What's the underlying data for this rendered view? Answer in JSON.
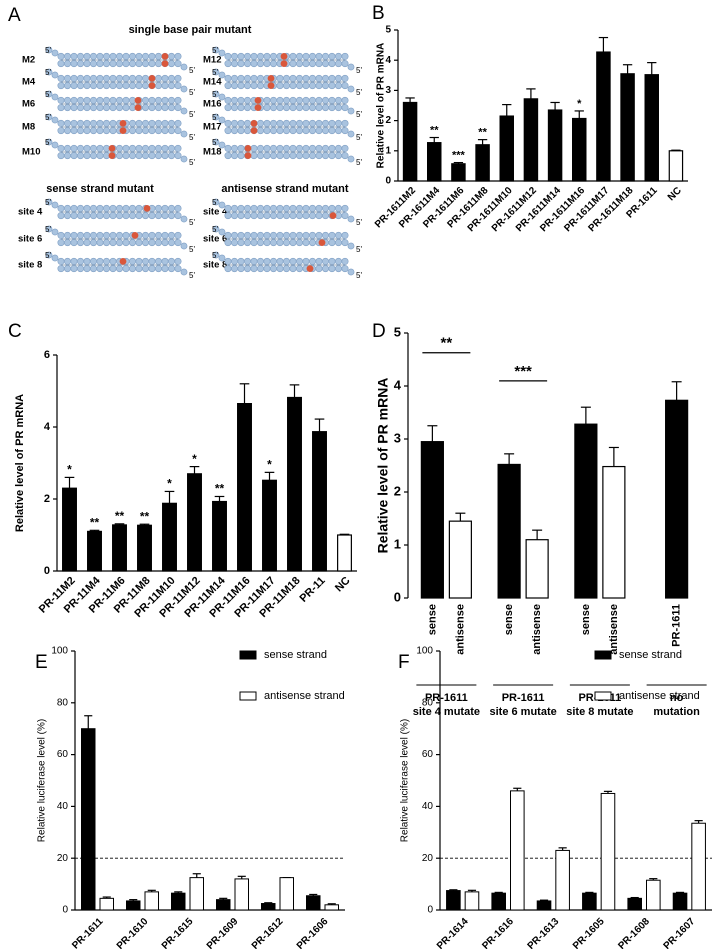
{
  "panel_a": {
    "letter": "A",
    "end_label": "5'",
    "single_title": "single base pair mutant",
    "single_left": [
      "M2",
      "M4",
      "M6",
      "M8",
      "M10"
    ],
    "single_right": [
      "M12",
      "M14",
      "M16",
      "M17",
      "M18"
    ],
    "sense_title": "sense strand mutant",
    "antisense_title": "antisense strand mutant",
    "sense_sites": [
      "site 4",
      "site 6",
      "site 8"
    ],
    "antisense_sites": [
      "site 4",
      "site 6",
      "site 8"
    ]
  },
  "chart_data": [
    {
      "panel": "B",
      "type": "bar",
      "ylabel": "Relative level of PR mRNA",
      "categories": [
        "PR-1611M2",
        "PR-1611M4",
        "PR-1611M6",
        "PR-1611M8",
        "PR-1611M10",
        "PR-1611M12",
        "PR-1611M14",
        "PR-1611M16",
        "PR-1611M17",
        "PR-1611M18",
        "PR-1611",
        "NC"
      ],
      "values": [
        2.6,
        1.27,
        0.57,
        1.2,
        2.15,
        2.72,
        2.35,
        2.07,
        4.27,
        3.55,
        3.52,
        1.0
      ],
      "errors": [
        0.15,
        0.17,
        0.04,
        0.17,
        0.38,
        0.33,
        0.25,
        0.25,
        0.48,
        0.3,
        0.4,
        0.02
      ],
      "significance": [
        null,
        "**",
        "***",
        "**",
        null,
        null,
        null,
        "*",
        null,
        null,
        null,
        null
      ],
      "colors": [
        "#000000",
        "#000000",
        "#000000",
        "#000000",
        "#000000",
        "#000000",
        "#000000",
        "#000000",
        "#000000",
        "#000000",
        "#000000",
        "#ffffff"
      ],
      "ylim": [
        0,
        5
      ],
      "yticks": [
        0,
        1,
        2,
        3,
        4,
        5
      ]
    },
    {
      "panel": "C",
      "type": "bar",
      "ylabel": "Relative level of PR mRNA",
      "categories": [
        "PR-11M2",
        "PR-11M4",
        "PR-11M6",
        "PR-11M8",
        "PR-11M10",
        "PR-11M12",
        "PR-11M14",
        "PR-11M16",
        "PR-11M17",
        "PR-11M18",
        "PR-11",
        "NC"
      ],
      "values": [
        2.3,
        1.1,
        1.28,
        1.27,
        1.88,
        2.7,
        1.93,
        4.65,
        2.52,
        4.82,
        3.87,
        1.0
      ],
      "errors": [
        0.3,
        0.03,
        0.03,
        0.03,
        0.33,
        0.2,
        0.14,
        0.55,
        0.22,
        0.35,
        0.35,
        0.02
      ],
      "significance": [
        "*",
        "**",
        "**",
        "**",
        "*",
        "*",
        "**",
        null,
        "*",
        null,
        null,
        null
      ],
      "colors": [
        "#000000",
        "#000000",
        "#000000",
        "#000000",
        "#000000",
        "#000000",
        "#000000",
        "#000000",
        "#000000",
        "#000000",
        "#000000",
        "#ffffff"
      ],
      "ylim": [
        0,
        6
      ],
      "yticks": [
        0,
        2,
        4,
        6
      ]
    },
    {
      "panel": "D",
      "type": "bar",
      "ylabel": "Relative level of PR mRNA",
      "groups": [
        {
          "label": [
            "PR-1611",
            "site 4 mutate"
          ],
          "categories": [
            "sense",
            "antisense"
          ],
          "values": [
            2.95,
            1.45
          ],
          "errors": [
            0.3,
            0.15
          ],
          "colors": [
            "#000000",
            "#ffffff"
          ],
          "significance": "**"
        },
        {
          "label": [
            "PR-1611",
            "site 6 mutate"
          ],
          "categories": [
            "sense",
            "antisense"
          ],
          "values": [
            2.52,
            1.1
          ],
          "errors": [
            0.2,
            0.18
          ],
          "colors": [
            "#000000",
            "#ffffff"
          ],
          "significance": "***"
        },
        {
          "label": [
            "PR-1611",
            "site 8 mutate"
          ],
          "categories": [
            "sense",
            "antisense"
          ],
          "values": [
            3.28,
            2.48
          ],
          "errors": [
            0.32,
            0.36
          ],
          "colors": [
            "#000000",
            "#ffffff"
          ]
        },
        {
          "label": [
            "no",
            "mutation"
          ],
          "categories": [
            "PR-1611"
          ],
          "values": [
            3.73
          ],
          "errors": [
            0.35
          ],
          "colors": [
            "#000000"
          ]
        }
      ],
      "ylim": [
        0,
        5
      ],
      "yticks": [
        0,
        1,
        2,
        3,
        4,
        5
      ]
    },
    {
      "panel": "E",
      "type": "grouped_bar",
      "ylabel": "Relative luciferase level (%)",
      "categories": [
        "PR-1611",
        "PR-1610",
        "PR-1615",
        "PR-1609",
        "PR-1612",
        "PR-1606"
      ],
      "series": [
        {
          "name": "sense strand",
          "color": "#000000",
          "values": [
            70,
            3.5,
            6.5,
            4,
            2.5,
            5.5
          ],
          "errors": [
            5,
            0.5,
            0.5,
            0.5,
            0.3,
            0.5
          ]
        },
        {
          "name": "antisense strand",
          "color": "#ffffff",
          "values": [
            4.5,
            7,
            12.5,
            12,
            12.5,
            2
          ],
          "errors": [
            0.5,
            0.6,
            1.5,
            1,
            0,
            0.4
          ]
        }
      ],
      "reference_line": 20,
      "ylim": [
        0,
        100
      ],
      "yticks": [
        0,
        20,
        40,
        60,
        80,
        100
      ]
    },
    {
      "panel": "F",
      "type": "grouped_bar",
      "ylabel": "Relative luciferase level (%)",
      "categories": [
        "PR-1614",
        "PR-1616",
        "PR-1613",
        "PR-1605",
        "PR-1608",
        "PR-1607"
      ],
      "series": [
        {
          "name": "sense strand",
          "color": "#000000",
          "values": [
            7.5,
            6.5,
            3.5,
            6.5,
            4.5,
            6.5
          ],
          "errors": [
            0.3,
            0.3,
            0.3,
            0.3,
            0.3,
            0.3
          ]
        },
        {
          "name": "antisense strand",
          "color": "#ffffff",
          "values": [
            7,
            46,
            23,
            45,
            11.5,
            33.5
          ],
          "errors": [
            0.6,
            1,
            1,
            0.8,
            0.6,
            1
          ]
        }
      ],
      "reference_line": 20,
      "ylim": [
        0,
        100
      ],
      "yticks": [
        0,
        20,
        40,
        60,
        80,
        100
      ]
    }
  ]
}
